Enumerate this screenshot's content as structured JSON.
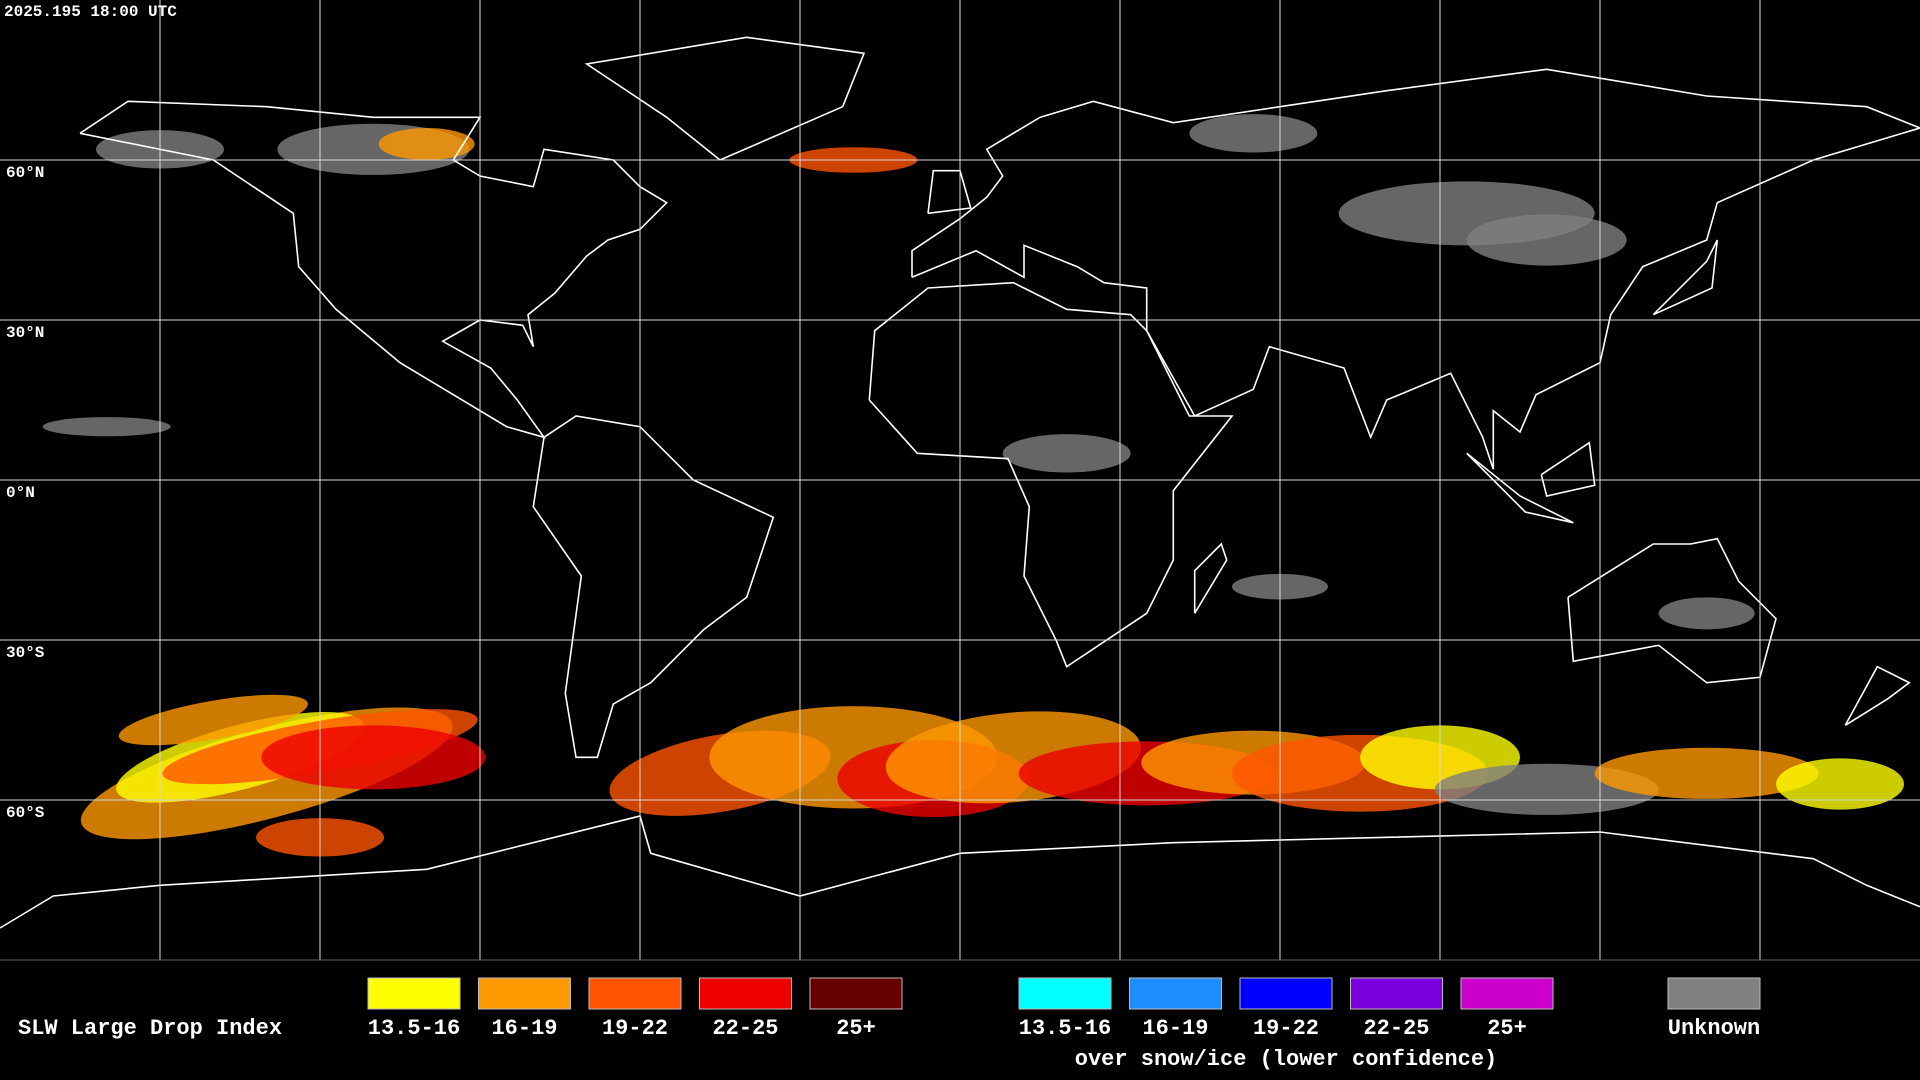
{
  "header": {
    "timestamp": "2025.195 18:00 UTC"
  },
  "map": {
    "latitude_labels": [
      "60°N",
      "30°N",
      "0°N",
      "30°S",
      "60°S"
    ]
  },
  "legend": {
    "title": "SLW Large Drop Index",
    "groups": [
      {
        "items": [
          {
            "label": "13.5-16",
            "color": "#ffff00"
          },
          {
            "label": "16-19",
            "color": "#ff9900"
          },
          {
            "label": "19-22",
            "color": "#ff5500"
          },
          {
            "label": "22-25",
            "color": "#ee0000"
          },
          {
            "label": "25+",
            "color": "#660000"
          }
        ]
      },
      {
        "items": [
          {
            "label": "13.5-16",
            "color": "#00ffff"
          },
          {
            "label": "16-19",
            "color": "#1e8cff"
          },
          {
            "label": "19-22",
            "color": "#0000ff"
          },
          {
            "label": "22-25",
            "color": "#7a00e0"
          },
          {
            "label": "25+",
            "color": "#cc00cc"
          }
        ],
        "caption": "over snow/ice (lower confidence)"
      }
    ],
    "unknown": {
      "label": "Unknown",
      "color": "#808080"
    }
  }
}
